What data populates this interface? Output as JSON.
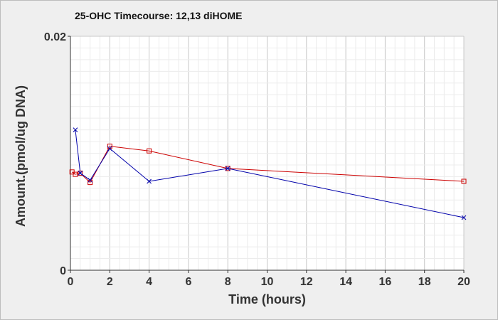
{
  "chart_data": {
    "type": "line",
    "title": "25-OHC Timecourse: 12,13 diHOME",
    "xlabel": "Time (hours)",
    "ylabel": "Amount.(pmol/ug DNA)",
    "xlim": [
      0,
      20
    ],
    "ylim": [
      0,
      0.02
    ],
    "x_ticks": [
      0,
      2,
      4,
      6,
      8,
      10,
      12,
      14,
      16,
      18,
      20
    ],
    "y_ticks": [
      0,
      0.02
    ],
    "x_tick_labels": [
      "0",
      "2",
      "4",
      "6",
      "8",
      "10",
      "12",
      "14",
      "16",
      "18",
      "20"
    ],
    "y_tick_labels": [
      "0",
      "0.02"
    ],
    "grid": true,
    "legend": "none",
    "series": [
      {
        "color": "#cc0000",
        "marker": "square",
        "x": [
          0.08,
          0.25,
          0.5,
          1,
          2,
          4,
          8,
          20
        ],
        "y": [
          0.0084,
          0.0082,
          0.0083,
          0.0075,
          0.0106,
          0.0102,
          0.0087,
          0.0076
        ]
      },
      {
        "color": "#0000aa",
        "marker": "x",
        "x": [
          0.25,
          0.5,
          1,
          2,
          4,
          8,
          20
        ],
        "y": [
          0.012,
          0.0083,
          0.0077,
          0.0104,
          0.0076,
          0.0087,
          0.0045
        ]
      }
    ]
  }
}
